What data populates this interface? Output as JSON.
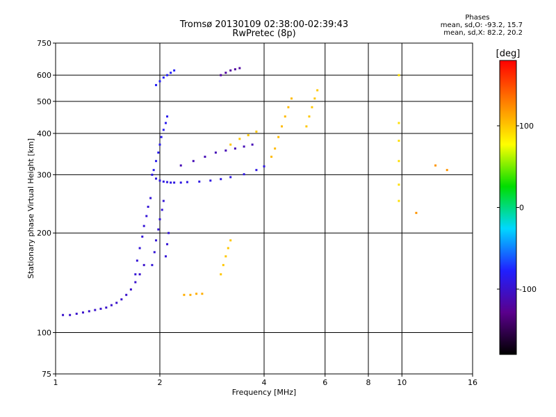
{
  "header": {
    "title_line1": "Tromsø 20130109 02:38:00-02:39:43",
    "title_line2": "RwPretec (8p)"
  },
  "stats": {
    "heading": "Phases",
    "line_o": "mean, sd,O: -93.2, 15.7",
    "line_x": "mean, sd,X:  82.2, 20.2"
  },
  "chart_data": {
    "type": "scatter",
    "title": "Tromsø 20130109 02:38:00-02:39:43",
    "subtitle": "RwPretec (8p)",
    "xlabel": "Frequency [MHz]",
    "ylabel": "Stationary phase Virtual Height [km]",
    "xscale": "log",
    "yscale": "log",
    "xlim": [
      1,
      16
    ],
    "ylim": [
      75,
      750
    ],
    "xticks": [
      1,
      2,
      4,
      6,
      8,
      10,
      16
    ],
    "yticks": [
      75,
      100,
      200,
      300,
      400,
      500,
      600,
      750
    ],
    "grid": true,
    "colorbar": {
      "label": "[deg]",
      "range": [
        -180,
        180
      ],
      "ticks": [
        100,
        0,
        -100
      ],
      "colormap": [
        "#000000",
        "#5a008c",
        "#2020ff",
        "#00d8ff",
        "#00dd00",
        "#ffff00",
        "#ff8000",
        "#ff0000"
      ]
    },
    "series": [
      {
        "phase": -100,
        "x": [
          1.05,
          1.1,
          1.15,
          1.2,
          1.25,
          1.3,
          1.35,
          1.4,
          1.45,
          1.5,
          1.55,
          1.6,
          1.65,
          1.7,
          1.75,
          1.8
        ],
        "y": [
          113,
          113,
          114,
          115,
          116,
          117,
          118,
          119,
          121,
          123,
          126,
          130,
          135,
          142,
          150,
          160
        ]
      },
      {
        "phase": -95,
        "x": [
          1.7,
          1.72,
          1.75,
          1.78,
          1.8,
          1.83,
          1.85,
          1.88,
          1.9,
          1.93,
          1.95,
          1.98,
          2.0,
          2.03,
          2.05,
          2.08,
          2.1,
          2.12
        ],
        "y": [
          150,
          165,
          180,
          195,
          210,
          225,
          240,
          255,
          160,
          175,
          190,
          205,
          220,
          235,
          250,
          170,
          185,
          200
        ]
      },
      {
        "phase": -90,
        "x": [
          1.9,
          1.95,
          2.0,
          2.05,
          2.1,
          2.15,
          2.2,
          2.3,
          2.4,
          2.6,
          2.8,
          3.0,
          3.2,
          3.5,
          3.8,
          4.0
        ],
        "y": [
          300,
          292,
          288,
          286,
          285,
          284,
          284,
          284,
          285,
          286,
          288,
          291,
          295,
          301,
          310,
          318
        ]
      },
      {
        "phase": -85,
        "x": [
          1.92,
          1.95,
          1.98,
          2.0,
          2.02,
          2.05,
          2.08,
          2.1
        ],
        "y": [
          310,
          330,
          350,
          370,
          390,
          410,
          430,
          450
        ]
      },
      {
        "phase": -80,
        "x": [
          1.95,
          2.0,
          2.05,
          2.1,
          2.15,
          2.2
        ],
        "y": [
          560,
          575,
          590,
          600,
          610,
          620
        ]
      },
      {
        "phase": -110,
        "x": [
          2.3,
          2.5,
          2.7,
          2.9,
          3.1,
          3.3,
          3.5,
          3.7
        ],
        "y": [
          320,
          330,
          340,
          350,
          355,
          360,
          365,
          370
        ]
      },
      {
        "phase": -120,
        "x": [
          3.0,
          3.1,
          3.2,
          3.3,
          3.4
        ],
        "y": [
          600,
          610,
          620,
          625,
          630
        ]
      },
      {
        "phase": 100,
        "x": [
          3.0,
          3.05,
          3.1,
          3.15,
          3.2
        ],
        "y": [
          150,
          160,
          170,
          180,
          190
        ]
      },
      {
        "phase": 110,
        "x": [
          2.35,
          2.45,
          2.55,
          2.65
        ],
        "y": [
          130,
          130,
          131,
          131
        ]
      },
      {
        "phase": 100,
        "x": [
          3.2,
          3.4,
          3.6,
          3.8
        ],
        "y": [
          370,
          385,
          395,
          405
        ]
      },
      {
        "phase": 105,
        "x": [
          4.2,
          4.3,
          4.4,
          4.5,
          4.6,
          4.7,
          4.8
        ],
        "y": [
          340,
          360,
          390,
          420,
          450,
          480,
          510
        ]
      },
      {
        "phase": 100,
        "x": [
          5.3,
          5.4,
          5.5,
          5.6,
          5.7
        ],
        "y": [
          420,
          450,
          480,
          510,
          540
        ]
      },
      {
        "phase": 90,
        "x": [
          9.8,
          9.8,
          9.8,
          9.8,
          9.8,
          9.8
        ],
        "y": [
          250,
          280,
          330,
          380,
          430,
          600
        ]
      },
      {
        "phase": 120,
        "x": [
          11.0,
          12.5,
          13.5
        ],
        "y": [
          230,
          320,
          310
        ]
      }
    ]
  }
}
